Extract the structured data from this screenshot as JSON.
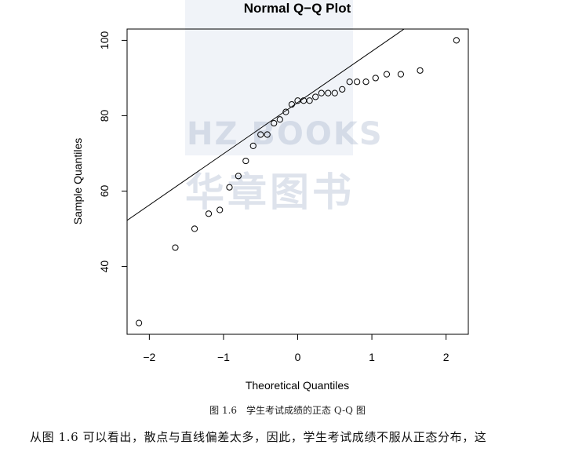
{
  "chart_data": {
    "type": "scatter",
    "title": "Normal Q−Q Plot",
    "xlabel": "Theoretical Quantiles",
    "ylabel": "Sample Quantiles",
    "xlim": [
      -2.3,
      2.3
    ],
    "ylim": [
      22,
      103
    ],
    "xticks": [
      -2,
      -1,
      0,
      1,
      2
    ],
    "xtick_labels": [
      "−2",
      "−1",
      "0",
      "1",
      "2"
    ],
    "yticks": [
      40,
      60,
      80,
      100
    ],
    "ytick_labels": [
      "40",
      "60",
      "80",
      "100"
    ],
    "grid": false,
    "legend": "none",
    "reference_line": {
      "slope": 13.6,
      "intercept": 83.5
    },
    "points": [
      {
        "x": -2.14,
        "y": 25
      },
      {
        "x": -1.65,
        "y": 45
      },
      {
        "x": -1.39,
        "y": 50
      },
      {
        "x": -1.2,
        "y": 54
      },
      {
        "x": -1.05,
        "y": 55
      },
      {
        "x": -0.92,
        "y": 61
      },
      {
        "x": -0.8,
        "y": 64
      },
      {
        "x": -0.7,
        "y": 68
      },
      {
        "x": -0.6,
        "y": 72
      },
      {
        "x": -0.5,
        "y": 75
      },
      {
        "x": -0.41,
        "y": 75
      },
      {
        "x": -0.32,
        "y": 78
      },
      {
        "x": -0.24,
        "y": 79
      },
      {
        "x": -0.16,
        "y": 81
      },
      {
        "x": -0.08,
        "y": 83
      },
      {
        "x": 0.0,
        "y": 84
      },
      {
        "x": 0.08,
        "y": 84
      },
      {
        "x": 0.16,
        "y": 84
      },
      {
        "x": 0.24,
        "y": 85
      },
      {
        "x": 0.32,
        "y": 86
      },
      {
        "x": 0.41,
        "y": 86
      },
      {
        "x": 0.5,
        "y": 86
      },
      {
        "x": 0.6,
        "y": 87
      },
      {
        "x": 0.7,
        "y": 89
      },
      {
        "x": 0.8,
        "y": 89
      },
      {
        "x": 0.92,
        "y": 89
      },
      {
        "x": 1.05,
        "y": 90
      },
      {
        "x": 1.2,
        "y": 91
      },
      {
        "x": 1.39,
        "y": 91
      },
      {
        "x": 1.65,
        "y": 92
      },
      {
        "x": 2.14,
        "y": 100
      }
    ]
  },
  "caption": "图 1.6　学生考试成绩的正态 Q-Q 图",
  "body_text": "从图 1.6 可以看出，散点与直线偏差太多，因此，学生考试成绩不服从正态分布，这",
  "watermark": {
    "line1": "HZ BOOKS",
    "line2": "华章图书"
  }
}
